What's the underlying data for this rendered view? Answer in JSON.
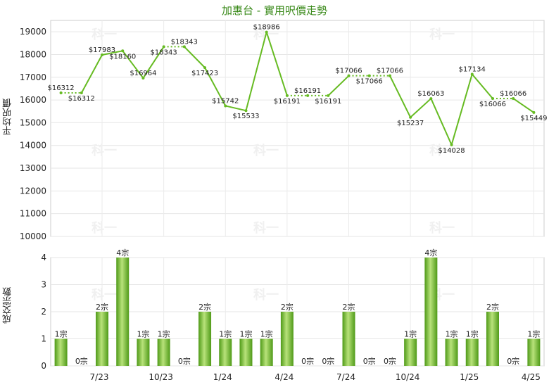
{
  "chart_data": [
    {
      "type": "line",
      "title": "加惠台 - 實用呎價走勢",
      "ylabel": "平均呎價",
      "ylim": [
        10000,
        19500
      ],
      "yticks": [
        10000,
        11000,
        12000,
        13000,
        14000,
        15000,
        16000,
        17000,
        18000,
        19000
      ],
      "value_prefix": "$",
      "grid": true,
      "colors": {
        "line": "#66bb22",
        "marker": "#66bb22"
      },
      "x_ticks": [
        "7/23",
        "10/23",
        "1/24",
        "4/24",
        "7/24",
        "10/24",
        "1/25",
        "4/25"
      ],
      "series": [
        {
          "values": [
            16312,
            16312,
            17983,
            18160,
            16964,
            18343,
            18343,
            17423,
            15742,
            15533,
            18986,
            16191,
            16191,
            16191,
            17066,
            17066,
            17066,
            15237,
            16063,
            14028,
            17134,
            16066,
            16066,
            15449
          ],
          "dotted_segments": [
            0,
            5,
            11,
            12,
            14,
            15,
            21
          ]
        }
      ]
    },
    {
      "type": "bar",
      "ylabel": "成交宗數",
      "ylim": [
        0,
        4
      ],
      "yticks": [
        0,
        1,
        2,
        3,
        4
      ],
      "value_suffix": "宗",
      "colors": {
        "bar_light": "#b8e27a",
        "bar_dark": "#4f9a18"
      },
      "x_ticks": [
        "7/23",
        "10/23",
        "1/24",
        "4/24",
        "7/24",
        "10/24",
        "1/25",
        "4/25"
      ],
      "series": [
        {
          "values": [
            1,
            0,
            2,
            4,
            1,
            1,
            0,
            2,
            1,
            1,
            1,
            2,
            0,
            0,
            2,
            0,
            0,
            1,
            4,
            1,
            1,
            2,
            0,
            1
          ]
        }
      ]
    }
  ],
  "watermark": "科一"
}
